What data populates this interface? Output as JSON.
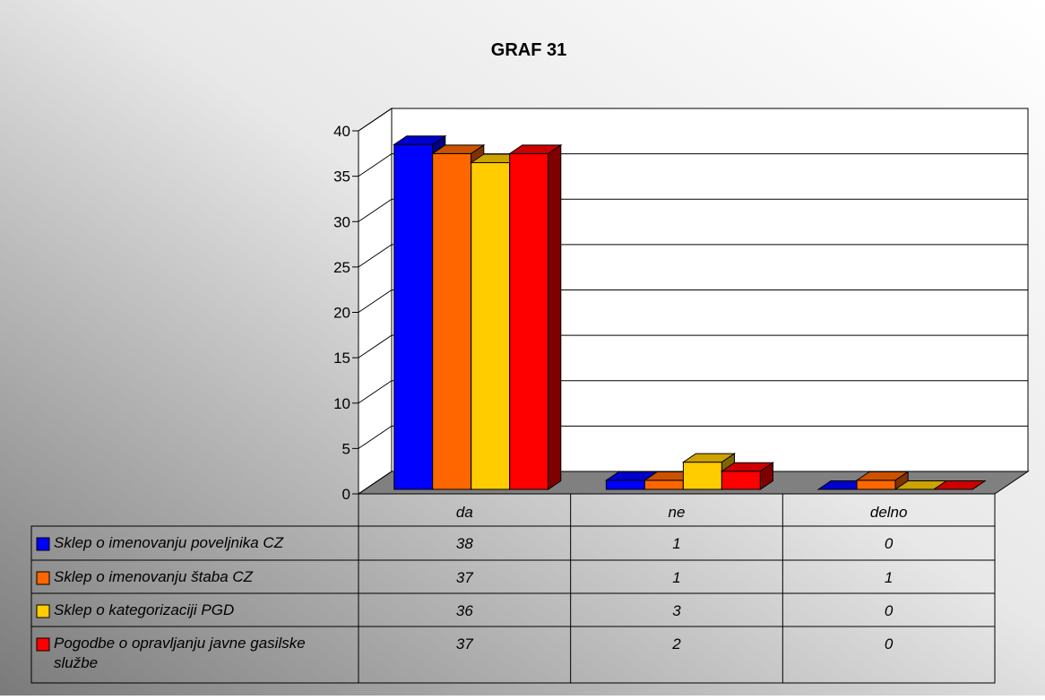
{
  "chart_data": {
    "type": "bar3d",
    "title": "GRAF 31",
    "categories": [
      "da",
      "ne",
      "delno"
    ],
    "series": [
      {
        "name": "Sklep o imenovanju poveljnika CZ",
        "color": "#0000ff",
        "values": [
          38,
          1,
          0
        ]
      },
      {
        "name": "Sklep o imenovanju štaba CZ",
        "color": "#ff6600",
        "values": [
          37,
          1,
          1
        ]
      },
      {
        "name": "Sklep o kategorizaciji PGD",
        "color": "#ffcc00",
        "values": [
          36,
          3,
          0
        ]
      },
      {
        "name": "Pogodbe o opravljanju javne gasilske službe",
        "color": "#ff0000",
        "values": [
          37,
          2,
          0
        ]
      }
    ],
    "ylim": [
      0,
      40
    ],
    "yticks": [
      0,
      5,
      10,
      15,
      20,
      25,
      30,
      35,
      40
    ],
    "grid": true,
    "data_table": true
  }
}
